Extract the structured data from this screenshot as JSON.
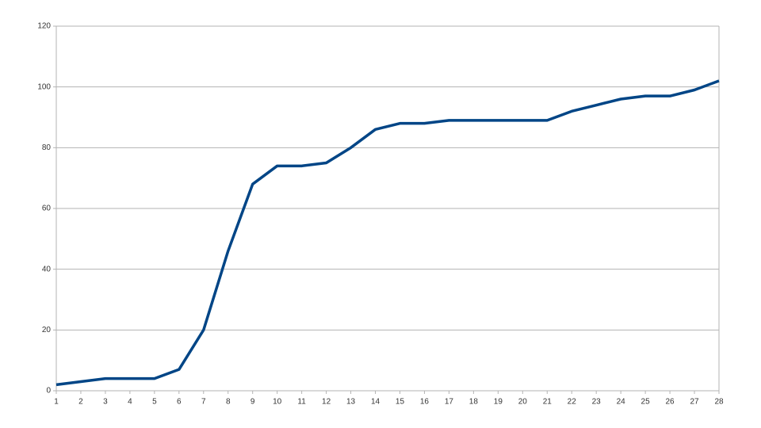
{
  "chart_data": {
    "type": "line",
    "x": [
      1,
      2,
      3,
      4,
      5,
      6,
      7,
      8,
      9,
      10,
      11,
      12,
      13,
      14,
      15,
      16,
      17,
      18,
      19,
      20,
      21,
      22,
      23,
      24,
      25,
      26,
      27,
      28
    ],
    "series": [
      {
        "color": "#004586",
        "values": [
          2,
          3,
          4,
          4,
          4,
          7,
          20,
          46,
          68,
          74,
          74,
          75,
          80,
          86,
          88,
          88,
          89,
          89,
          89,
          89,
          89,
          92,
          94,
          96,
          97,
          97,
          99,
          102
        ]
      }
    ],
    "xlim": [
      1,
      28
    ],
    "xticks": [
      1,
      2,
      3,
      4,
      5,
      6,
      7,
      8,
      9,
      10,
      11,
      12,
      13,
      14,
      15,
      16,
      17,
      18,
      19,
      20,
      21,
      22,
      23,
      24,
      25,
      26,
      27,
      28
    ],
    "ylim": [
      0,
      120
    ],
    "yticks": [
      0,
      20,
      40,
      60,
      80,
      100,
      120
    ],
    "grid": true
  }
}
